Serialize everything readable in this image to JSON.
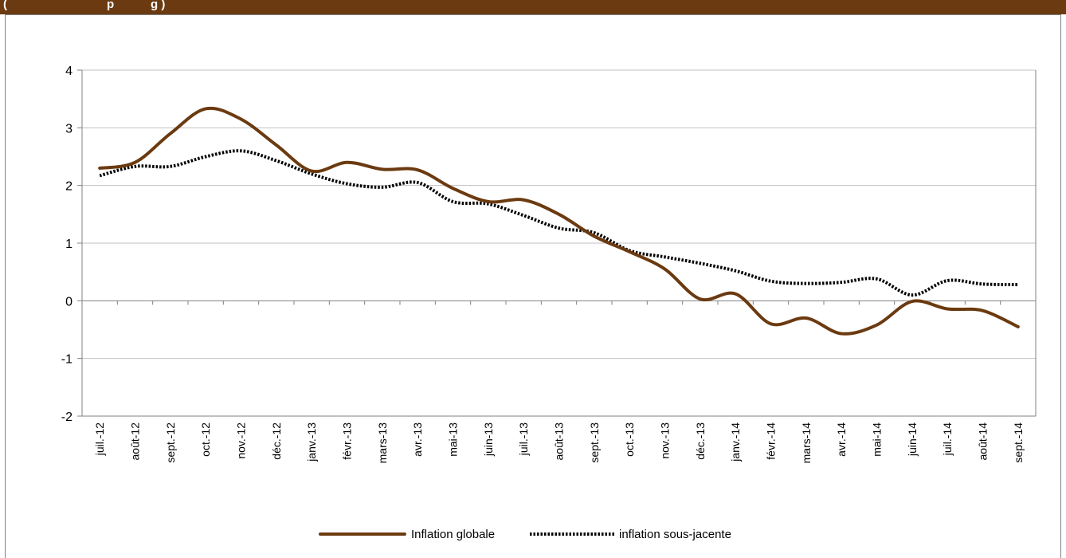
{
  "header": {
    "title": "(                              p           g )"
  },
  "colors": {
    "header_bar": "#6b3a10",
    "series_global": "#6b3a10",
    "series_core": "#000000",
    "grid": "#c0c0c0"
  },
  "chart_data": {
    "type": "line",
    "title": "",
    "xlabel": "",
    "ylabel": "",
    "ylim": [
      -2,
      4
    ],
    "yticks": [
      "-2",
      "-1",
      "0",
      "1",
      "2",
      "3",
      "4"
    ],
    "grid": true,
    "legend_position": "bottom",
    "categories": [
      "juil.-12",
      "août-12",
      "sept.-12",
      "oct.-12",
      "nov.-12",
      "déc.-12",
      "janv.-13",
      "févr.-13",
      "mars-13",
      "avr.-13",
      "mai-13",
      "juin-13",
      "juil.-13",
      "août-13",
      "sept.-13",
      "oct.-13",
      "nov.-13",
      "déc.-13",
      "janv.-14",
      "févr.-14",
      "mars-14",
      "avr.-14",
      "mai-14",
      "juin-14",
      "juil.-14",
      "août-14",
      "sept.-14"
    ],
    "series": [
      {
        "name": "Inflation globale",
        "style": "solid",
        "values": [
          2.3,
          2.4,
          2.9,
          3.33,
          3.15,
          2.7,
          2.25,
          2.4,
          2.28,
          2.27,
          1.95,
          1.72,
          1.75,
          1.5,
          1.12,
          0.85,
          0.55,
          0.03,
          0.12,
          -0.4,
          -0.3,
          -0.57,
          -0.42,
          -0.01,
          -0.14,
          -0.17,
          -0.45
        ]
      },
      {
        "name": "inflation sous-jacente",
        "style": "dotted",
        "values": [
          2.17,
          2.33,
          2.33,
          2.5,
          2.6,
          2.43,
          2.2,
          2.03,
          1.97,
          2.05,
          1.72,
          1.68,
          1.48,
          1.26,
          1.18,
          0.87,
          0.76,
          0.65,
          0.52,
          0.34,
          0.3,
          0.32,
          0.38,
          0.1,
          0.35,
          0.29,
          0.28
        ]
      }
    ]
  }
}
